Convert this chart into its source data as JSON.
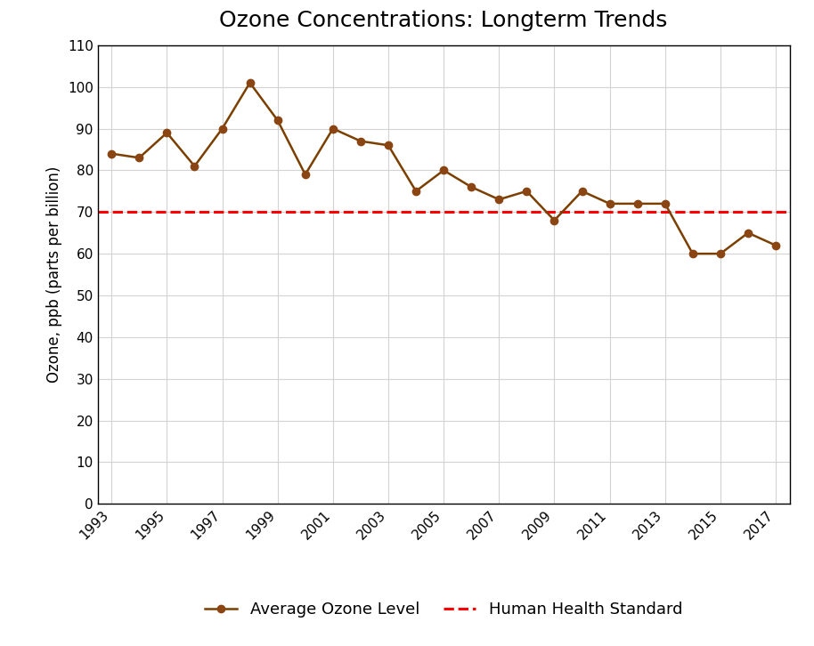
{
  "title": "Ozone Concentrations: Longterm Trends",
  "ylabel": "Ozone, ppb (parts per billion)",
  "years": [
    1993,
    1994,
    1995,
    1996,
    1997,
    1998,
    1999,
    2000,
    2001,
    2002,
    2003,
    2004,
    2005,
    2006,
    2007,
    2008,
    2009,
    2010,
    2011,
    2012,
    2013,
    2014,
    2015,
    2016,
    2017
  ],
  "ozone_values": [
    84,
    83,
    89,
    81,
    90,
    101,
    92,
    79,
    90,
    87,
    86,
    75,
    80,
    76,
    73,
    75,
    68,
    75,
    72,
    72,
    72,
    60,
    60,
    65,
    62
  ],
  "standard_value": 70,
  "line_color": "#7B3F00",
  "standard_color": "#FF0000",
  "marker_color": "#8B4513",
  "marker_style": "o",
  "marker_size": 6,
  "line_width": 1.8,
  "standard_linewidth": 2.2,
  "ylim": [
    0,
    110
  ],
  "yticks": [
    0,
    10,
    20,
    30,
    40,
    50,
    60,
    70,
    80,
    90,
    100,
    110
  ],
  "xtick_labels": [
    "1993",
    "1995",
    "1997",
    "1999",
    "2001",
    "2003",
    "2005",
    "2007",
    "2009",
    "2011",
    "2013",
    "2015",
    "2017"
  ],
  "xtick_years": [
    1993,
    1995,
    1997,
    1999,
    2001,
    2003,
    2005,
    2007,
    2009,
    2011,
    2013,
    2015,
    2017
  ],
  "legend_ozone_label": "Average Ozone Level",
  "legend_standard_label": "Human Health Standard",
  "background_color": "#FFFFFF",
  "grid_color": "#D3D3D3",
  "title_fontsize": 18,
  "axis_label_fontsize": 12,
  "tick_fontsize": 11,
  "legend_fontsize": 13,
  "spine_color": "#000000",
  "xlim_left": 1992.5,
  "xlim_right": 2017.5
}
